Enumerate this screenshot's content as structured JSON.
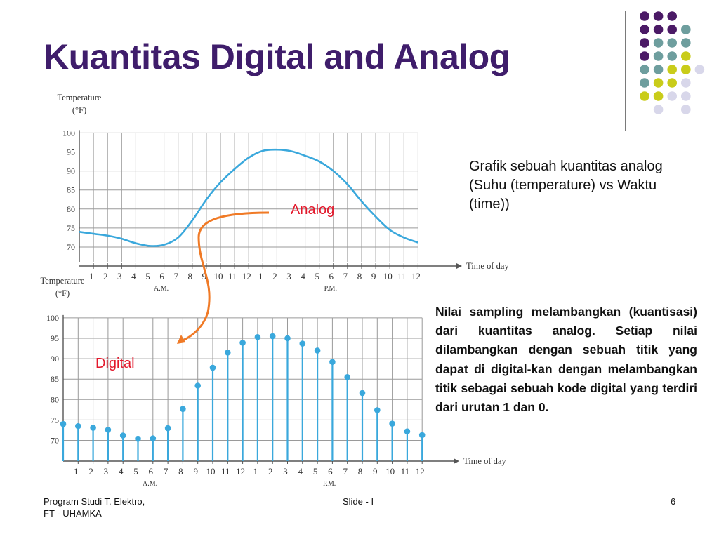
{
  "slide": {
    "title": "Kuantitas Digital and Analog",
    "analog_caption": "Grafik sebuah kuantitas analog (Suhu (temperature) vs Waktu (time))",
    "digital_caption": "Nilai sampling melambangkan (kuantisasi) dari kuantitas analog. Setiap nilai dilambangkan dengan sebuah titik yang dapat di digital-kan dengan melambangkan titik sebagai sebuah kode digital yang terdiri dari urutan 1 dan 0.",
    "analog_label": "Analog",
    "digital_label": "Digital",
    "footer_left_line1": "Program Studi T. Elektro,",
    "footer_left_line2": "FT - UHAMKA",
    "footer_center": "Slide - I",
    "footer_right": "6"
  },
  "colors": {
    "title": "#3f1d6b",
    "curve": "#3aa8dc",
    "arrow": "#f07a26",
    "label": "#e3182b",
    "dots_purple": "#4b1a66",
    "dots_teal": "#6e9e9e",
    "dots_yellow": "#c9cc1a",
    "dots_lavender": "#d8d7ea"
  },
  "chart_data": [
    {
      "type": "line",
      "ylabel": "Temperature (°F)",
      "xlabel": "Time of day",
      "period_labels": [
        "A.M.",
        "P.M."
      ],
      "x_ticks": [
        "1",
        "2",
        "3",
        "4",
        "5",
        "6",
        "7",
        "8",
        "9",
        "10",
        "11",
        "12",
        "1",
        "2",
        "3",
        "4",
        "5",
        "6",
        "7",
        "8",
        "9",
        "10",
        "11",
        "12"
      ],
      "yticks": [
        70,
        75,
        80,
        85,
        90,
        95,
        100
      ],
      "ylim": [
        66,
        100
      ],
      "grid": true,
      "series": [
        {
          "x": [
            0,
            1,
            2,
            3,
            4,
            5,
            6,
            7,
            8,
            9,
            10,
            11,
            12,
            13,
            14,
            15,
            16,
            17,
            18,
            19,
            20,
            21,
            22,
            23,
            24
          ],
          "values": [
            74,
            73.5,
            73,
            72.2,
            71,
            70.3,
            70.6,
            72.5,
            77,
            82.5,
            87,
            90.5,
            93.5,
            95.3,
            95.6,
            95.2,
            94,
            92.5,
            90,
            86.5,
            82,
            78,
            74.5,
            72.5,
            71.2
          ]
        }
      ]
    },
    {
      "type": "scatter",
      "ylabel": "Temperature (°F)",
      "xlabel": "Time of day",
      "period_labels": [
        "A.M.",
        "P.M."
      ],
      "x_ticks": [
        "1",
        "2",
        "3",
        "4",
        "5",
        "6",
        "7",
        "8",
        "9",
        "10",
        "11",
        "12",
        "1",
        "2",
        "3",
        "4",
        "5",
        "6",
        "7",
        "8",
        "9",
        "10",
        "11",
        "12"
      ],
      "yticks": [
        70,
        75,
        80,
        85,
        90,
        95,
        100
      ],
      "ylim": [
        66,
        100
      ],
      "grid": true,
      "series": [
        {
          "x": [
            0,
            1,
            2,
            3,
            4,
            5,
            6,
            7,
            8,
            9,
            10,
            11,
            12,
            13,
            14,
            15,
            16,
            17,
            18,
            19,
            20,
            21,
            22,
            23,
            24
          ],
          "values": [
            74,
            73.5,
            73.1,
            72.6,
            71.2,
            70.4,
            70.5,
            73,
            77.7,
            83.4,
            87.8,
            91.5,
            93.9,
            95.3,
            95.5,
            95,
            93.7,
            92,
            89.2,
            85.5,
            81.6,
            77.4,
            74.1,
            72.2,
            71.3
          ]
        }
      ]
    }
  ]
}
